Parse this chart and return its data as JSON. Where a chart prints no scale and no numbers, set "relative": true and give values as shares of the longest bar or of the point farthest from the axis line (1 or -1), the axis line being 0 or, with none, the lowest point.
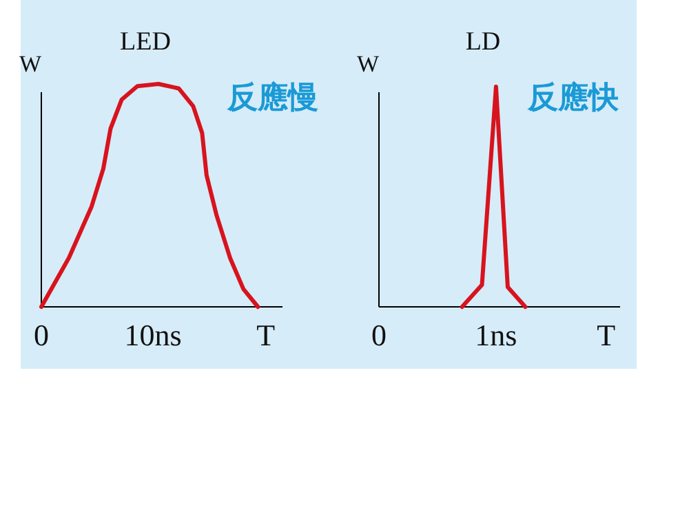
{
  "chart_data": [
    {
      "type": "line",
      "title": "LED",
      "ylabel": "W",
      "relative": true,
      "tick_labels": "x",
      "xlim": [
        0,
        21.6
      ],
      "xticks": [
        0,
        {
          "value": 10,
          "label": "10ns"
        },
        {
          "value": 20.1,
          "label": "T"
        }
      ],
      "annotations": [
        "反應慢"
      ],
      "x": [
        0,
        2.47,
        4.5,
        5.55,
        6.2,
        7.2,
        8.6,
        10.5,
        12.3,
        13.6,
        14.4,
        14.8,
        15.7,
        16.9,
        18.1,
        19.4
      ],
      "series": [
        {
          "color": "#d7141e",
          "values": [
            0,
            0.22,
            0.45,
            0.62,
            0.8,
            0.93,
            0.99,
            1,
            0.98,
            0.9,
            0.78,
            0.59,
            0.41,
            0.22,
            0.08,
            0
          ]
        }
      ]
    },
    {
      "type": "line",
      "title": "LD",
      "ylabel": "W",
      "relative": true,
      "tick_labels": "x",
      "xlim": [
        0,
        2.06
      ],
      "xticks": [
        0,
        {
          "value": 1,
          "label": "1ns"
        },
        {
          "value": 1.94,
          "label": "T"
        }
      ],
      "annotations": [
        "反應快"
      ],
      "x": [
        0.71,
        0.88,
        1.0,
        1.1,
        1.25
      ],
      "series": [
        {
          "color": "#d7141e",
          "values": [
            0,
            0.1,
            1,
            0.09,
            0
          ]
        }
      ]
    }
  ]
}
